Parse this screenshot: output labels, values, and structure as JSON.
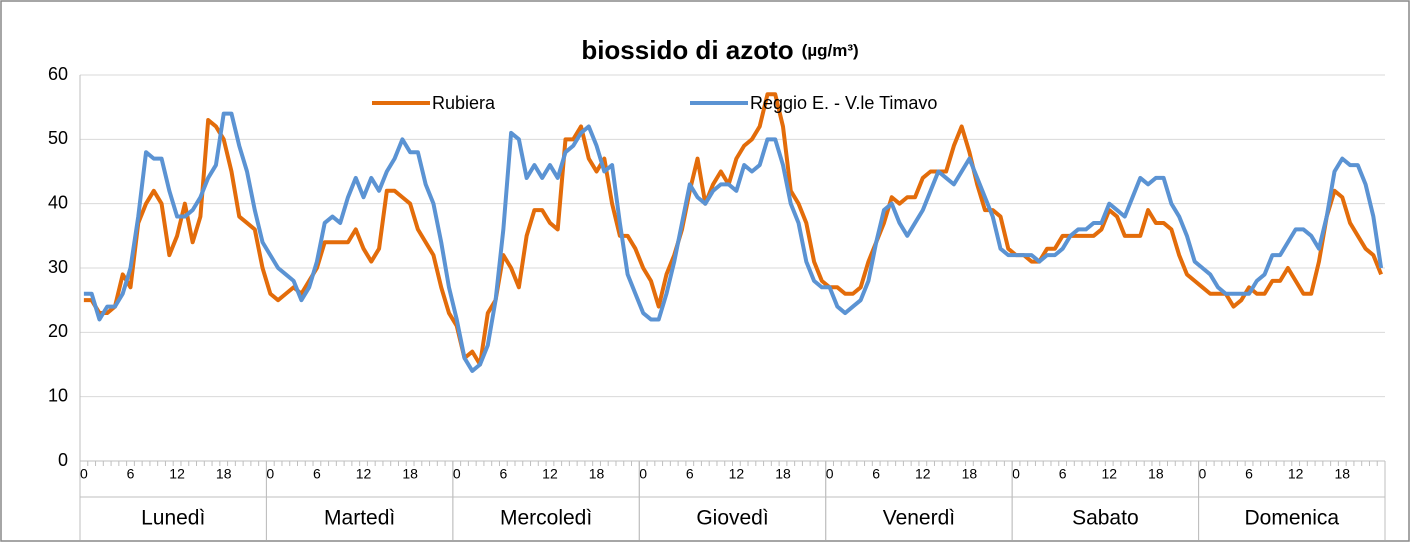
{
  "chart_data": {
    "type": "line",
    "title": "biossido di azoto",
    "title_unit": "(µg/m³)",
    "groups": [
      "Lunedì",
      "Martedì",
      "Mercoledì",
      "Giovedì",
      "Venerdì",
      "Sabato",
      "Domenica"
    ],
    "categories": [
      "0",
      null,
      null,
      null,
      null,
      null,
      "6",
      null,
      null,
      null,
      null,
      null,
      "12",
      null,
      null,
      null,
      null,
      null,
      "18",
      null,
      null,
      null,
      null,
      null,
      "0",
      null,
      null,
      null,
      null,
      null,
      "6",
      null,
      null,
      null,
      null,
      null,
      "12",
      null,
      null,
      null,
      null,
      null,
      "18",
      null,
      null,
      null,
      null,
      null,
      "0",
      null,
      null,
      null,
      null,
      null,
      "6",
      null,
      null,
      null,
      null,
      null,
      "12",
      null,
      null,
      null,
      null,
      null,
      "18",
      null,
      null,
      null,
      null,
      null,
      "0",
      null,
      null,
      null,
      null,
      null,
      "6",
      null,
      null,
      null,
      null,
      null,
      "12",
      null,
      null,
      null,
      null,
      null,
      "18",
      null,
      null,
      null,
      null,
      null,
      "0",
      null,
      null,
      null,
      null,
      null,
      "6",
      null,
      null,
      null,
      null,
      null,
      "12",
      null,
      null,
      null,
      null,
      null,
      "18",
      null,
      null,
      null,
      null,
      null,
      "0",
      null,
      null,
      null,
      null,
      null,
      "6",
      null,
      null,
      null,
      null,
      null,
      "12",
      null,
      null,
      null,
      null,
      null,
      "18",
      null,
      null,
      null,
      null,
      null,
      "0",
      null,
      null,
      null,
      null,
      null,
      "6",
      null,
      null,
      null,
      null,
      null,
      "12",
      null,
      null,
      null,
      null,
      null,
      "18",
      null,
      null,
      null,
      null,
      null
    ],
    "series": [
      {
        "name": "Rubiera",
        "color": "#e36c0a",
        "values": [
          25,
          25,
          23,
          23,
          24,
          29,
          27,
          37,
          40,
          42,
          40,
          32,
          35,
          40,
          34,
          38,
          53,
          52,
          50,
          45,
          38,
          37,
          36,
          30,
          26,
          25,
          26,
          27,
          26,
          28,
          30,
          34,
          34,
          34,
          34,
          36,
          33,
          31,
          33,
          42,
          42,
          41,
          40,
          36,
          34,
          32,
          27,
          23,
          21,
          16,
          17,
          15,
          23,
          25,
          32,
          30,
          27,
          35,
          39,
          39,
          37,
          36,
          50,
          50,
          52,
          47,
          45,
          47,
          40,
          35,
          35,
          33,
          30,
          28,
          24,
          29,
          32,
          36,
          42,
          47,
          40,
          43,
          45,
          43,
          47,
          49,
          50,
          52,
          57,
          57,
          52,
          42,
          40,
          37,
          31,
          28,
          27,
          27,
          26,
          26,
          27,
          31,
          34,
          37,
          41,
          40,
          41,
          41,
          44,
          45,
          45,
          45,
          49,
          52,
          48,
          43,
          39,
          39,
          38,
          33,
          32,
          32,
          31,
          31,
          33,
          33,
          35,
          35,
          35,
          35,
          35,
          36,
          39,
          38,
          35,
          35,
          35,
          39,
          37,
          37,
          36,
          32,
          29,
          28,
          27,
          26,
          26,
          26,
          24,
          25,
          27,
          26,
          26,
          28,
          28,
          30,
          28,
          26,
          26,
          31,
          38,
          42,
          41,
          37,
          35,
          33,
          32,
          29
        ]
      },
      {
        "name": "Reggio E. - V.le Timavo",
        "color": "#5b93d3",
        "values": [
          26,
          26,
          22,
          24,
          24,
          26,
          30,
          38,
          48,
          47,
          47,
          42,
          38,
          38,
          39,
          41,
          44,
          46,
          54,
          54,
          49,
          45,
          39,
          34,
          32,
          30,
          29,
          28,
          25,
          27,
          31,
          37,
          38,
          37,
          41,
          44,
          41,
          44,
          42,
          45,
          47,
          50,
          48,
          48,
          43,
          40,
          34,
          27,
          22,
          16,
          14,
          15,
          18,
          25,
          36,
          51,
          50,
          44,
          46,
          44,
          46,
          44,
          48,
          49,
          51,
          52,
          49,
          45,
          46,
          37,
          29,
          26,
          23,
          22,
          22,
          26,
          31,
          37,
          43,
          41,
          40,
          42,
          43,
          43,
          42,
          46,
          45,
          46,
          50,
          50,
          46,
          40,
          37,
          31,
          28,
          27,
          27,
          24,
          23,
          24,
          25,
          28,
          34,
          39,
          40,
          37,
          35,
          37,
          39,
          42,
          45,
          44,
          43,
          45,
          47,
          44,
          41,
          38,
          33,
          32,
          32,
          32,
          32,
          31,
          32,
          32,
          33,
          35,
          36,
          36,
          37,
          37,
          40,
          39,
          38,
          41,
          44,
          43,
          44,
          44,
          40,
          38,
          35,
          31,
          30,
          29,
          27,
          26,
          26,
          26,
          26,
          28,
          29,
          32,
          32,
          34,
          36,
          36,
          35,
          33,
          38,
          45,
          47,
          46,
          46,
          43,
          38,
          30
        ]
      }
    ],
    "ylim": [
      0,
      60
    ],
    "yticks": [
      0,
      10,
      20,
      30,
      40,
      50,
      60
    ],
    "grid": true
  }
}
